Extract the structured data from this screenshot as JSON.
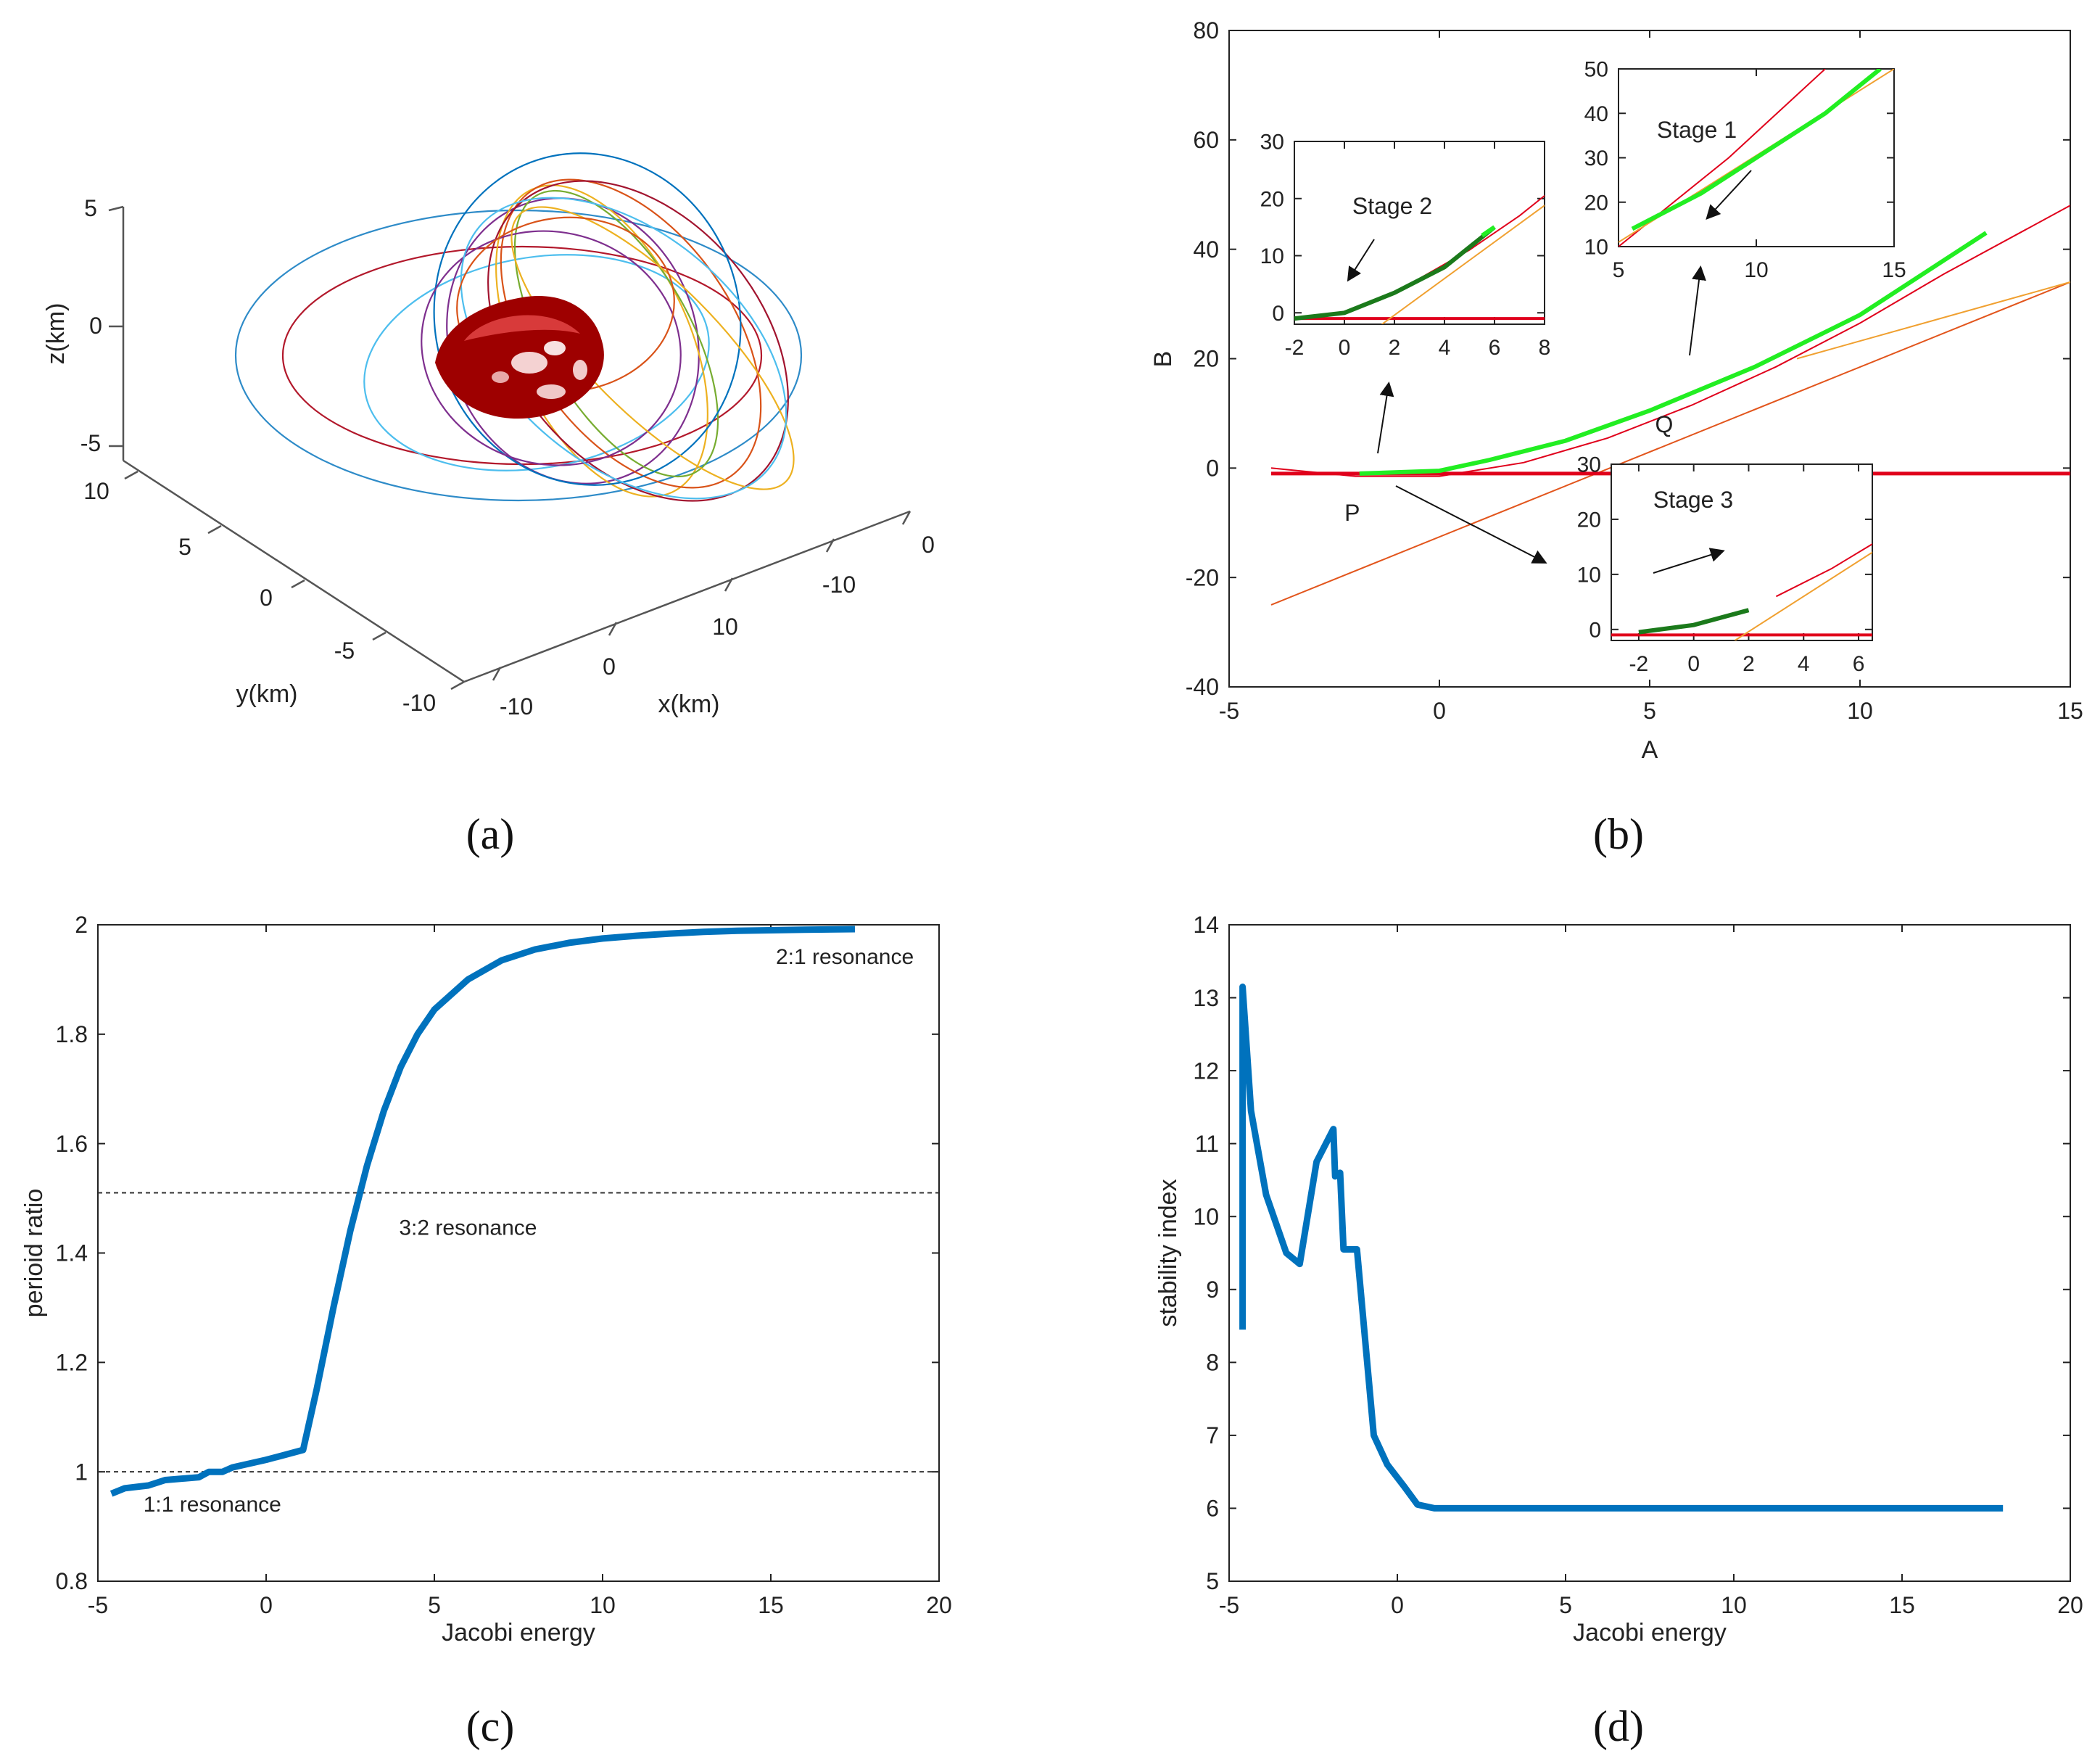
{
  "figure_labels": {
    "a": "(a)",
    "b": "(b)",
    "c": "(c)",
    "d": "(d)"
  },
  "colors": {
    "blue": "#0072BD",
    "red": "#E0001B",
    "green": "#22EE22",
    "darkgreen": "#1B7A1B",
    "orange": "#F0A030"
  },
  "chart_data": [
    {
      "id": "a",
      "type": "scatter",
      "title": "",
      "xlabel": "x(km)",
      "ylabel": "y(km)",
      "zlabel": "z(km)",
      "x_ticks": [
        "-10",
        "0",
        "10",
        "-10",
        "0"
      ],
      "y_ticks": [
        "10",
        "5",
        "0",
        "-5",
        "-10"
      ],
      "z_ticks": [
        "5",
        "0",
        "-5"
      ],
      "series": [
        {
          "name": "periodic orbit family around asteroid",
          "values": []
        }
      ]
    },
    {
      "id": "b",
      "type": "line",
      "xlabel": "A",
      "ylabel": "B",
      "xlim": [
        -5,
        15
      ],
      "ylim": [
        -40,
        80
      ],
      "x_ticks": [
        "-5",
        "0",
        "5",
        "10",
        "15"
      ],
      "y_ticks": [
        "-40",
        "-20",
        "0",
        "20",
        "40",
        "60",
        "80"
      ],
      "point_labels": [
        "P",
        "Q"
      ],
      "series": [
        {
          "name": "B=-1",
          "x": [
            -4,
            15
          ],
          "y": [
            -1,
            -1
          ]
        },
        {
          "name": "red curve",
          "x": [
            -4,
            -2,
            0,
            2,
            4,
            6,
            8,
            10,
            12,
            15
          ],
          "y": [
            0,
            -1.5,
            -1.5,
            1,
            5.5,
            11.5,
            18.5,
            26.5,
            35.5,
            48
          ]
        },
        {
          "name": "orange line",
          "x": [
            -4,
            15
          ],
          "y": [
            -25,
            34
          ]
        },
        {
          "name": "green family",
          "x": [
            -1.9,
            0,
            1.2,
            3,
            5,
            7.5,
            10,
            13
          ],
          "y": [
            -1,
            -0.5,
            1.5,
            5,
            10.5,
            18.5,
            28,
            43
          ]
        }
      ],
      "insets": [
        {
          "label": "Stage 2",
          "xlim": [
            -2,
            8
          ],
          "ylim": [
            -2,
            30
          ],
          "x_ticks": [
            "-2",
            "0",
            "2",
            "4",
            "6",
            "8"
          ],
          "y_ticks": [
            "0",
            "10",
            "20",
            "30"
          ],
          "green": {
            "x": [
              -2,
              0,
              2,
              4,
              6
            ],
            "y": [
              -1,
              0,
              3.5,
              8,
              15
            ]
          }
        },
        {
          "label": "Stage 1",
          "xlim": [
            5,
            15
          ],
          "ylim": [
            10,
            50
          ],
          "x_ticks": [
            "5",
            "10",
            "15"
          ],
          "y_ticks": [
            "10",
            "20",
            "30",
            "40",
            "50"
          ],
          "green": {
            "x": [
              5.5,
              8,
              10,
              12.5,
              14.5
            ],
            "y": [
              14,
              22,
              30,
              40,
              50
            ]
          }
        },
        {
          "label": "Stage 3",
          "xlim": [
            -3,
            6.5
          ],
          "ylim": [
            -2,
            30
          ],
          "x_ticks": [
            "-2",
            "0",
            "2",
            "4",
            "6"
          ],
          "y_ticks": [
            "0",
            "10",
            "20",
            "30"
          ],
          "green": {
            "x": [
              -2,
              0,
              2
            ],
            "y": [
              -0.5,
              0.8,
              3.5
            ]
          }
        }
      ]
    },
    {
      "id": "c",
      "type": "line",
      "xlabel": "Jacobi energy",
      "ylabel": "perioid ratio",
      "xlim": [
        -5,
        20
      ],
      "ylim": [
        0.8,
        2
      ],
      "x_ticks": [
        "-5",
        "0",
        "5",
        "10",
        "15",
        "20"
      ],
      "y_ticks": [
        "0.8",
        "1",
        "1.2",
        "1.4",
        "1.6",
        "1.8",
        "2"
      ],
      "reference_lines": [
        {
          "y": 1.0,
          "label": "1:1 resonance"
        },
        {
          "y": 1.51,
          "label": "3:2 resonance"
        }
      ],
      "end_label": "2:1 resonance",
      "series": [
        {
          "name": "period ratio",
          "x": [
            -4.6,
            -4.2,
            -3.5,
            -3,
            -2,
            -1.7,
            -1.3,
            -1,
            0,
            0.5,
            1.1,
            1.5,
            2,
            2.5,
            3,
            3.5,
            4,
            4.5,
            5,
            6,
            7,
            8,
            9,
            10,
            11,
            12,
            13,
            14,
            15,
            16,
            17.5
          ],
          "values": [
            0.96,
            0.97,
            0.975,
            0.985,
            0.99,
            1.0,
            1.0,
            1.008,
            1.022,
            1.03,
            1.04,
            1.15,
            1.3,
            1.44,
            1.56,
            1.66,
            1.74,
            1.8,
            1.845,
            1.9,
            1.935,
            1.955,
            1.967,
            1.975,
            1.98,
            1.984,
            1.987,
            1.989,
            1.99,
            1.991,
            1.992
          ]
        }
      ]
    },
    {
      "id": "d",
      "type": "line",
      "xlabel": "Jacobi energy",
      "ylabel": "stability index",
      "xlim": [
        -5,
        20
      ],
      "ylim": [
        5,
        14
      ],
      "x_ticks": [
        "-5",
        "0",
        "5",
        "10",
        "15",
        "20"
      ],
      "y_ticks": [
        "5",
        "6",
        "7",
        "8",
        "9",
        "10",
        "11",
        "12",
        "13",
        "14"
      ],
      "series": [
        {
          "name": "stability index",
          "x": [
            -4.6,
            -4.6,
            -4.35,
            -3.9,
            -3.3,
            -2.9,
            -2.4,
            -1.9,
            -1.85,
            -1.7,
            -1.6,
            -1.2,
            -0.7,
            -0.3,
            0.2,
            0.6,
            1.1,
            3,
            6,
            10,
            14,
            18
          ],
          "values": [
            8.45,
            13.15,
            11.45,
            10.3,
            9.5,
            9.35,
            10.75,
            11.2,
            10.55,
            10.6,
            9.55,
            9.55,
            7.0,
            6.6,
            6.3,
            6.05,
            6.0,
            6.0,
            6.0,
            6.0,
            6.0,
            6.0
          ]
        }
      ]
    }
  ]
}
